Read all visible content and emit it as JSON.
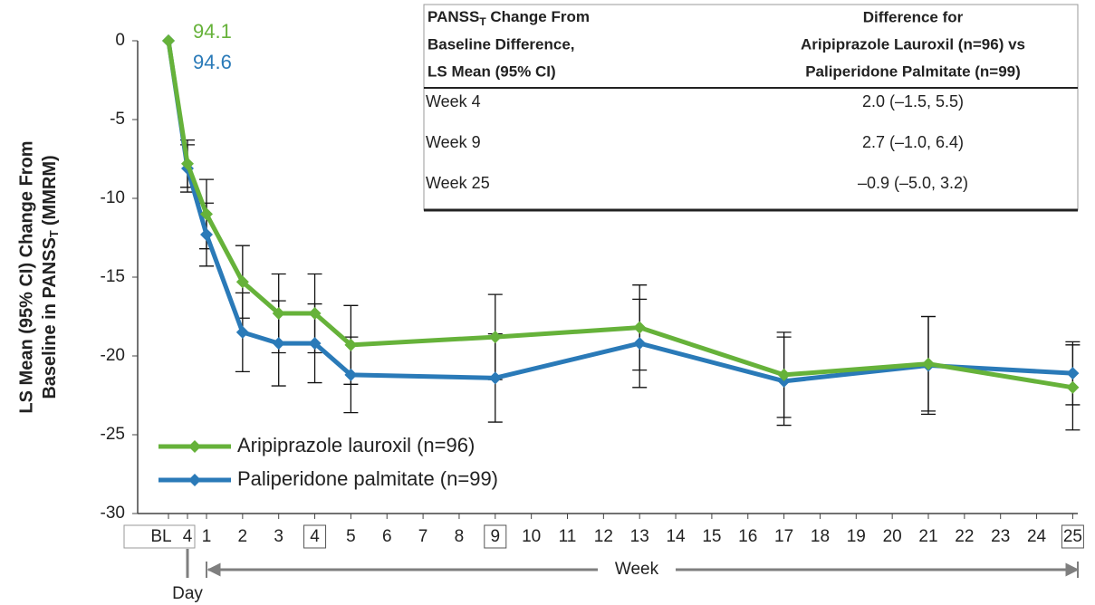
{
  "chart_data": {
    "type": "line",
    "ylabel": {
      "line1": "LS Mean (95% CI) Change From",
      "pre": "Baseline in PANSS",
      "sub": "T",
      "post": "(MMRM)"
    },
    "ylim": [
      -30,
      0
    ],
    "yticks": [
      0,
      -5,
      -10,
      -15,
      -20,
      -25,
      -30
    ],
    "xticks": [
      "BL",
      "4",
      "1",
      "2",
      "3",
      "4",
      "5",
      "6",
      "7",
      "8",
      "9",
      "10",
      "11",
      "12",
      "13",
      "14",
      "15",
      "16",
      "17",
      "18",
      "19",
      "20",
      "21",
      "22",
      "23",
      "24",
      "25"
    ],
    "boxed_weeks": [
      "4",
      "9",
      "25"
    ],
    "day_label": "Day",
    "week_label": "Week",
    "categories": [
      "BL",
      "4",
      "1",
      "2",
      "3",
      "4",
      "5",
      "9",
      "13",
      "17",
      "21",
      "25"
    ],
    "series": [
      {
        "name": "Aripiprazole lauroxil (n=96)",
        "color": "#66b23a",
        "values": [
          0,
          -7.8,
          -11.0,
          -15.3,
          -17.3,
          -17.3,
          -19.3,
          -18.8,
          -18.2,
          -21.2,
          -20.5,
          -22.0
        ],
        "errors": [
          0,
          1.5,
          2.2,
          2.3,
          2.5,
          2.5,
          2.5,
          2.7,
          2.7,
          2.7,
          3.0,
          2.7
        ]
      },
      {
        "name": "Paliperidone palmitate (n=99)",
        "color": "#2a7ab8",
        "values": [
          0,
          -8.1,
          -12.3,
          -18.5,
          -19.2,
          -19.2,
          -21.2,
          -21.4,
          -19.2,
          -21.6,
          -20.6,
          -21.1
        ],
        "errors": [
          0,
          1.5,
          2.0,
          2.5,
          2.7,
          2.5,
          2.4,
          2.8,
          2.8,
          2.8,
          3.1,
          2.0
        ]
      }
    ],
    "annotations": [
      {
        "text": "94.1",
        "color": "#66b23a"
      },
      {
        "text": "94.6",
        "color": "#2a7ab8"
      }
    ],
    "table": {
      "header": [
        {
          "pre": "PANSS",
          "sub": "T",
          "post": " Change From",
          "lines": [
            "Baseline Difference,",
            "LS Mean (95% CI)"
          ]
        },
        {
          "lines": [
            "Difference for",
            "Aripiprazole Lauroxil (n=96) vs",
            "Paliperidone Palmitate (n=99)"
          ]
        }
      ],
      "rows": [
        [
          "Week 4",
          "2.0 (–1.5, 5.5)"
        ],
        [
          "Week 9",
          "2.7 (–1.0, 6.4)"
        ],
        [
          "Week 25",
          "–0.9 (–5.0, 3.2)"
        ]
      ]
    }
  }
}
